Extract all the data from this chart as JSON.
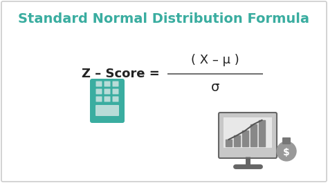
{
  "title": "Standard Normal Distribution Formula",
  "title_color": "#3aada0",
  "title_fontsize": 14,
  "title_fontweight": "bold",
  "background_color": "#ffffff",
  "border_color": "#cccccc",
  "formula_label": "Z – Score = ",
  "formula_numerator": "( X – μ )",
  "formula_denominator": "σ",
  "formula_color": "#222222",
  "formula_fontsize": 13,
  "line_color": "#555555",
  "calc_color": "#3aada0",
  "calc_screen_color": "#b8dcd8",
  "icon_gray": "#888888",
  "icon_dark": "#666666",
  "figsize": [
    4.74,
    2.65
  ],
  "dpi": 100
}
